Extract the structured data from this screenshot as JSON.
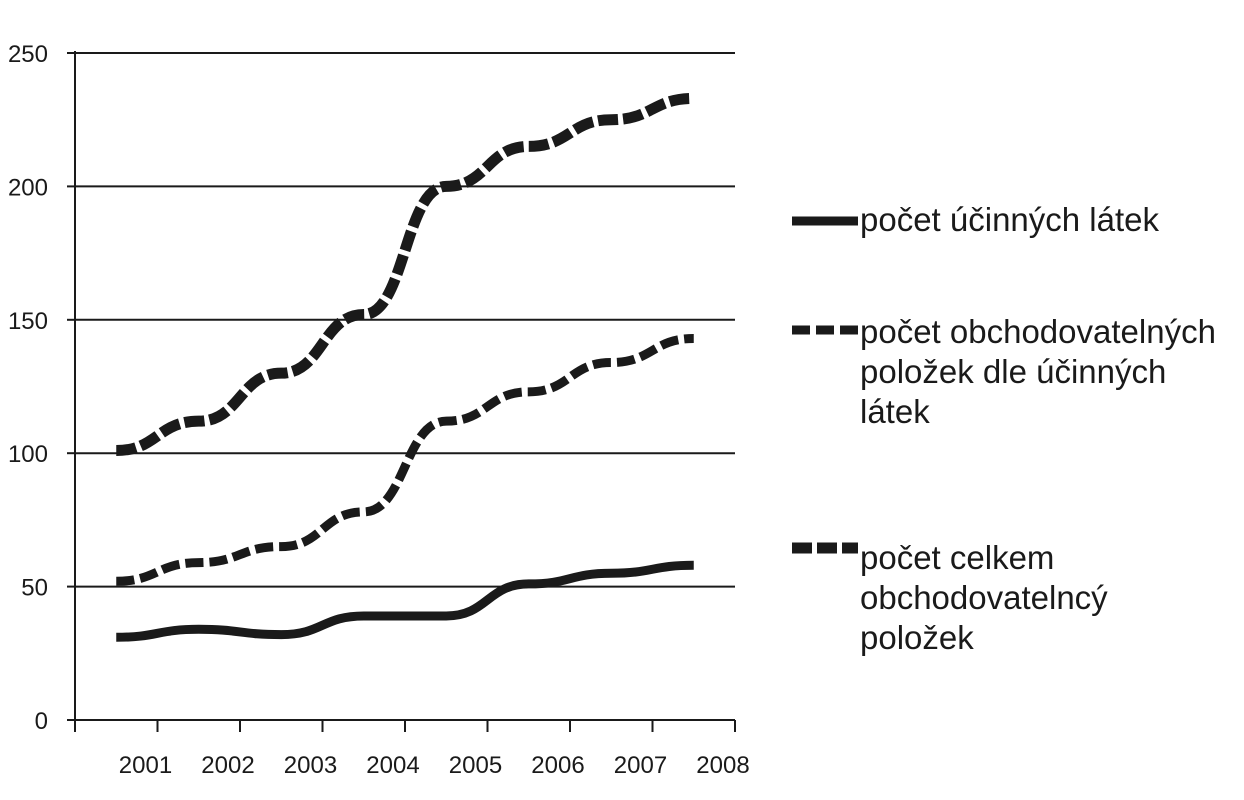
{
  "chart_data": {
    "type": "line",
    "title": "",
    "xlabel": "",
    "ylabel": "",
    "x_ticks": [
      "2001",
      "2002",
      "2003",
      "2004",
      "2005",
      "2006",
      "2007",
      "2008"
    ],
    "y_ticks": [
      "0",
      "50",
      "100",
      "150",
      "200",
      "250"
    ],
    "ylim": [
      0,
      250
    ],
    "grid": "horizontal",
    "legend_position": "right",
    "series": [
      {
        "name": "počet účinných látek",
        "style": "solid",
        "color": "#1a1a1a",
        "x": [
          2001,
          2002,
          2003,
          2004,
          2005,
          2006,
          2007,
          2008
        ],
        "values": [
          31,
          34,
          32,
          39,
          39,
          51,
          55,
          58
        ]
      },
      {
        "name": "počet obchodovatelných položek dle účinných látek",
        "style": "dashed",
        "color": "#1a1a1a",
        "x": [
          2001,
          2002,
          2003,
          2004,
          2005,
          2006,
          2007,
          2008
        ],
        "values": [
          52,
          59,
          65,
          78,
          112,
          123,
          134,
          143
        ]
      },
      {
        "name": "počet celkem obchodovatelncý položek",
        "style": "dash-dot",
        "color": "#1a1a1a",
        "x": [
          2001,
          2002,
          2003,
          2004,
          2005,
          2006,
          2007,
          2008
        ],
        "values": [
          101,
          112,
          130,
          152,
          200,
          215,
          225,
          233
        ]
      }
    ]
  }
}
